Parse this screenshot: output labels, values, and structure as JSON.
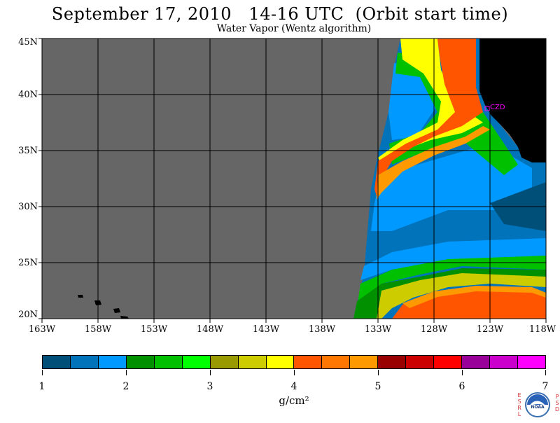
{
  "title": "September 17, 2010   14-16 UTC  (Orbit start time)",
  "subtitle": "Water Vapor (Wentz algorithm)",
  "lat_labels": [
    "45N",
    "40N",
    "35N",
    "30N",
    "25N",
    "20N"
  ],
  "lon_labels": [
    "163W",
    "158W",
    "153W",
    "148W",
    "143W",
    "138W",
    "133W",
    "128W",
    "123W",
    "118W"
  ],
  "station_label": "CZD",
  "colorbar": {
    "colors": [
      "#004f78",
      "#0073bb",
      "#0099ff",
      "#009000",
      "#00c000",
      "#00ff00",
      "#999900",
      "#cccc00",
      "#ffff00",
      "#ff5500",
      "#ff7700",
      "#ff9900",
      "#990000",
      "#cc0000",
      "#ff0000",
      "#990099",
      "#cc00cc",
      "#ff00ff"
    ],
    "tick_labels": [
      "1",
      "2",
      "3",
      "4",
      "5",
      "6",
      "7"
    ],
    "units": "g/cm²"
  },
  "colors": {
    "no_data": "#666666",
    "land": "#000000",
    "grid": "#000000",
    "station": "#ff00ff"
  },
  "logo": {
    "left_letters": "ESRL",
    "right_letters": "PSD",
    "emblem": "noaa-logo"
  }
}
